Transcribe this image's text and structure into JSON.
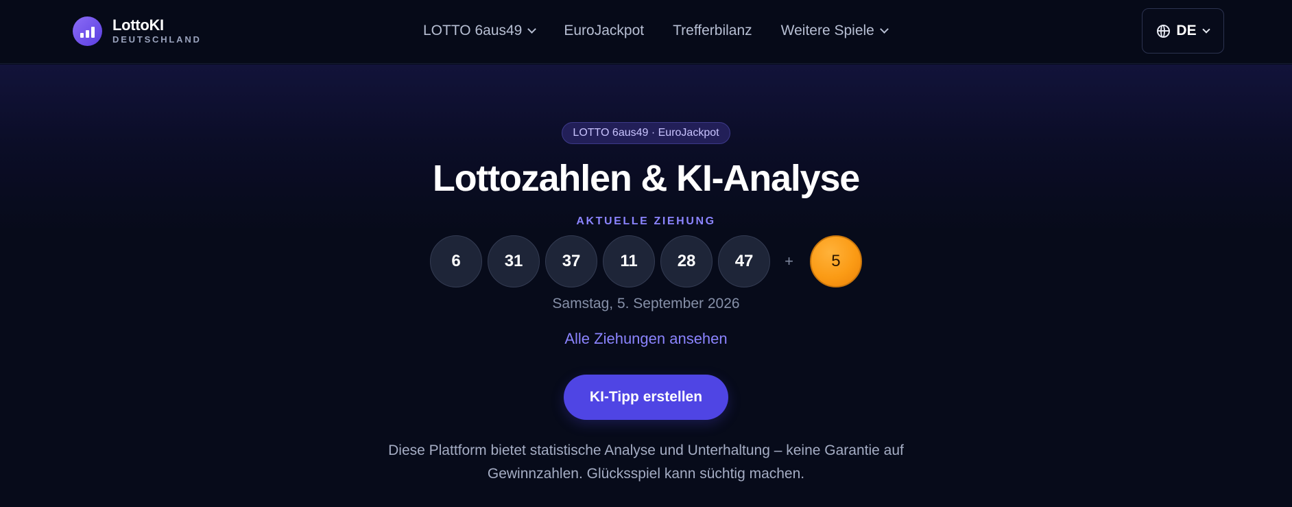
{
  "header": {
    "brand": {
      "title": "LottoKI",
      "subtitle": "DEUTSCHLAND",
      "icon": "bar-chart-icon"
    },
    "nav": [
      {
        "label": "LOTTO 6aus49",
        "has_dropdown": true
      },
      {
        "label": "EuroJackpot",
        "has_dropdown": false
      },
      {
        "label": "Trefferbilanz",
        "has_dropdown": false
      },
      {
        "label": "Weitere Spiele",
        "has_dropdown": true
      }
    ],
    "language": {
      "label": "DE",
      "icon": "globe-icon"
    }
  },
  "hero": {
    "pill": "LOTTO 6aus49 · EuroJackpot",
    "title": "Lottozahlen & KI-Analyse",
    "draw_label": "AKTUELLE ZIEHUNG",
    "numbers": [
      "6",
      "31",
      "37",
      "11",
      "28",
      "47"
    ],
    "plus": "+",
    "bonus": "5",
    "date": "Samstag, 5. September 2026",
    "all_draws_link": "Alle Ziehungen ansehen",
    "cta": "KI-Tipp erstellen",
    "disclaimer": "Diese Plattform bietet statistische Analyse und Unterhaltung – keine Garantie auf Gewinnzahlen. Glücksspiel kann süchtig machen."
  },
  "colors": {
    "background": "#070b1a",
    "accent": "#4f45e4",
    "accent_text": "#8b84ff",
    "bonus_ball": "#fb9b15"
  }
}
